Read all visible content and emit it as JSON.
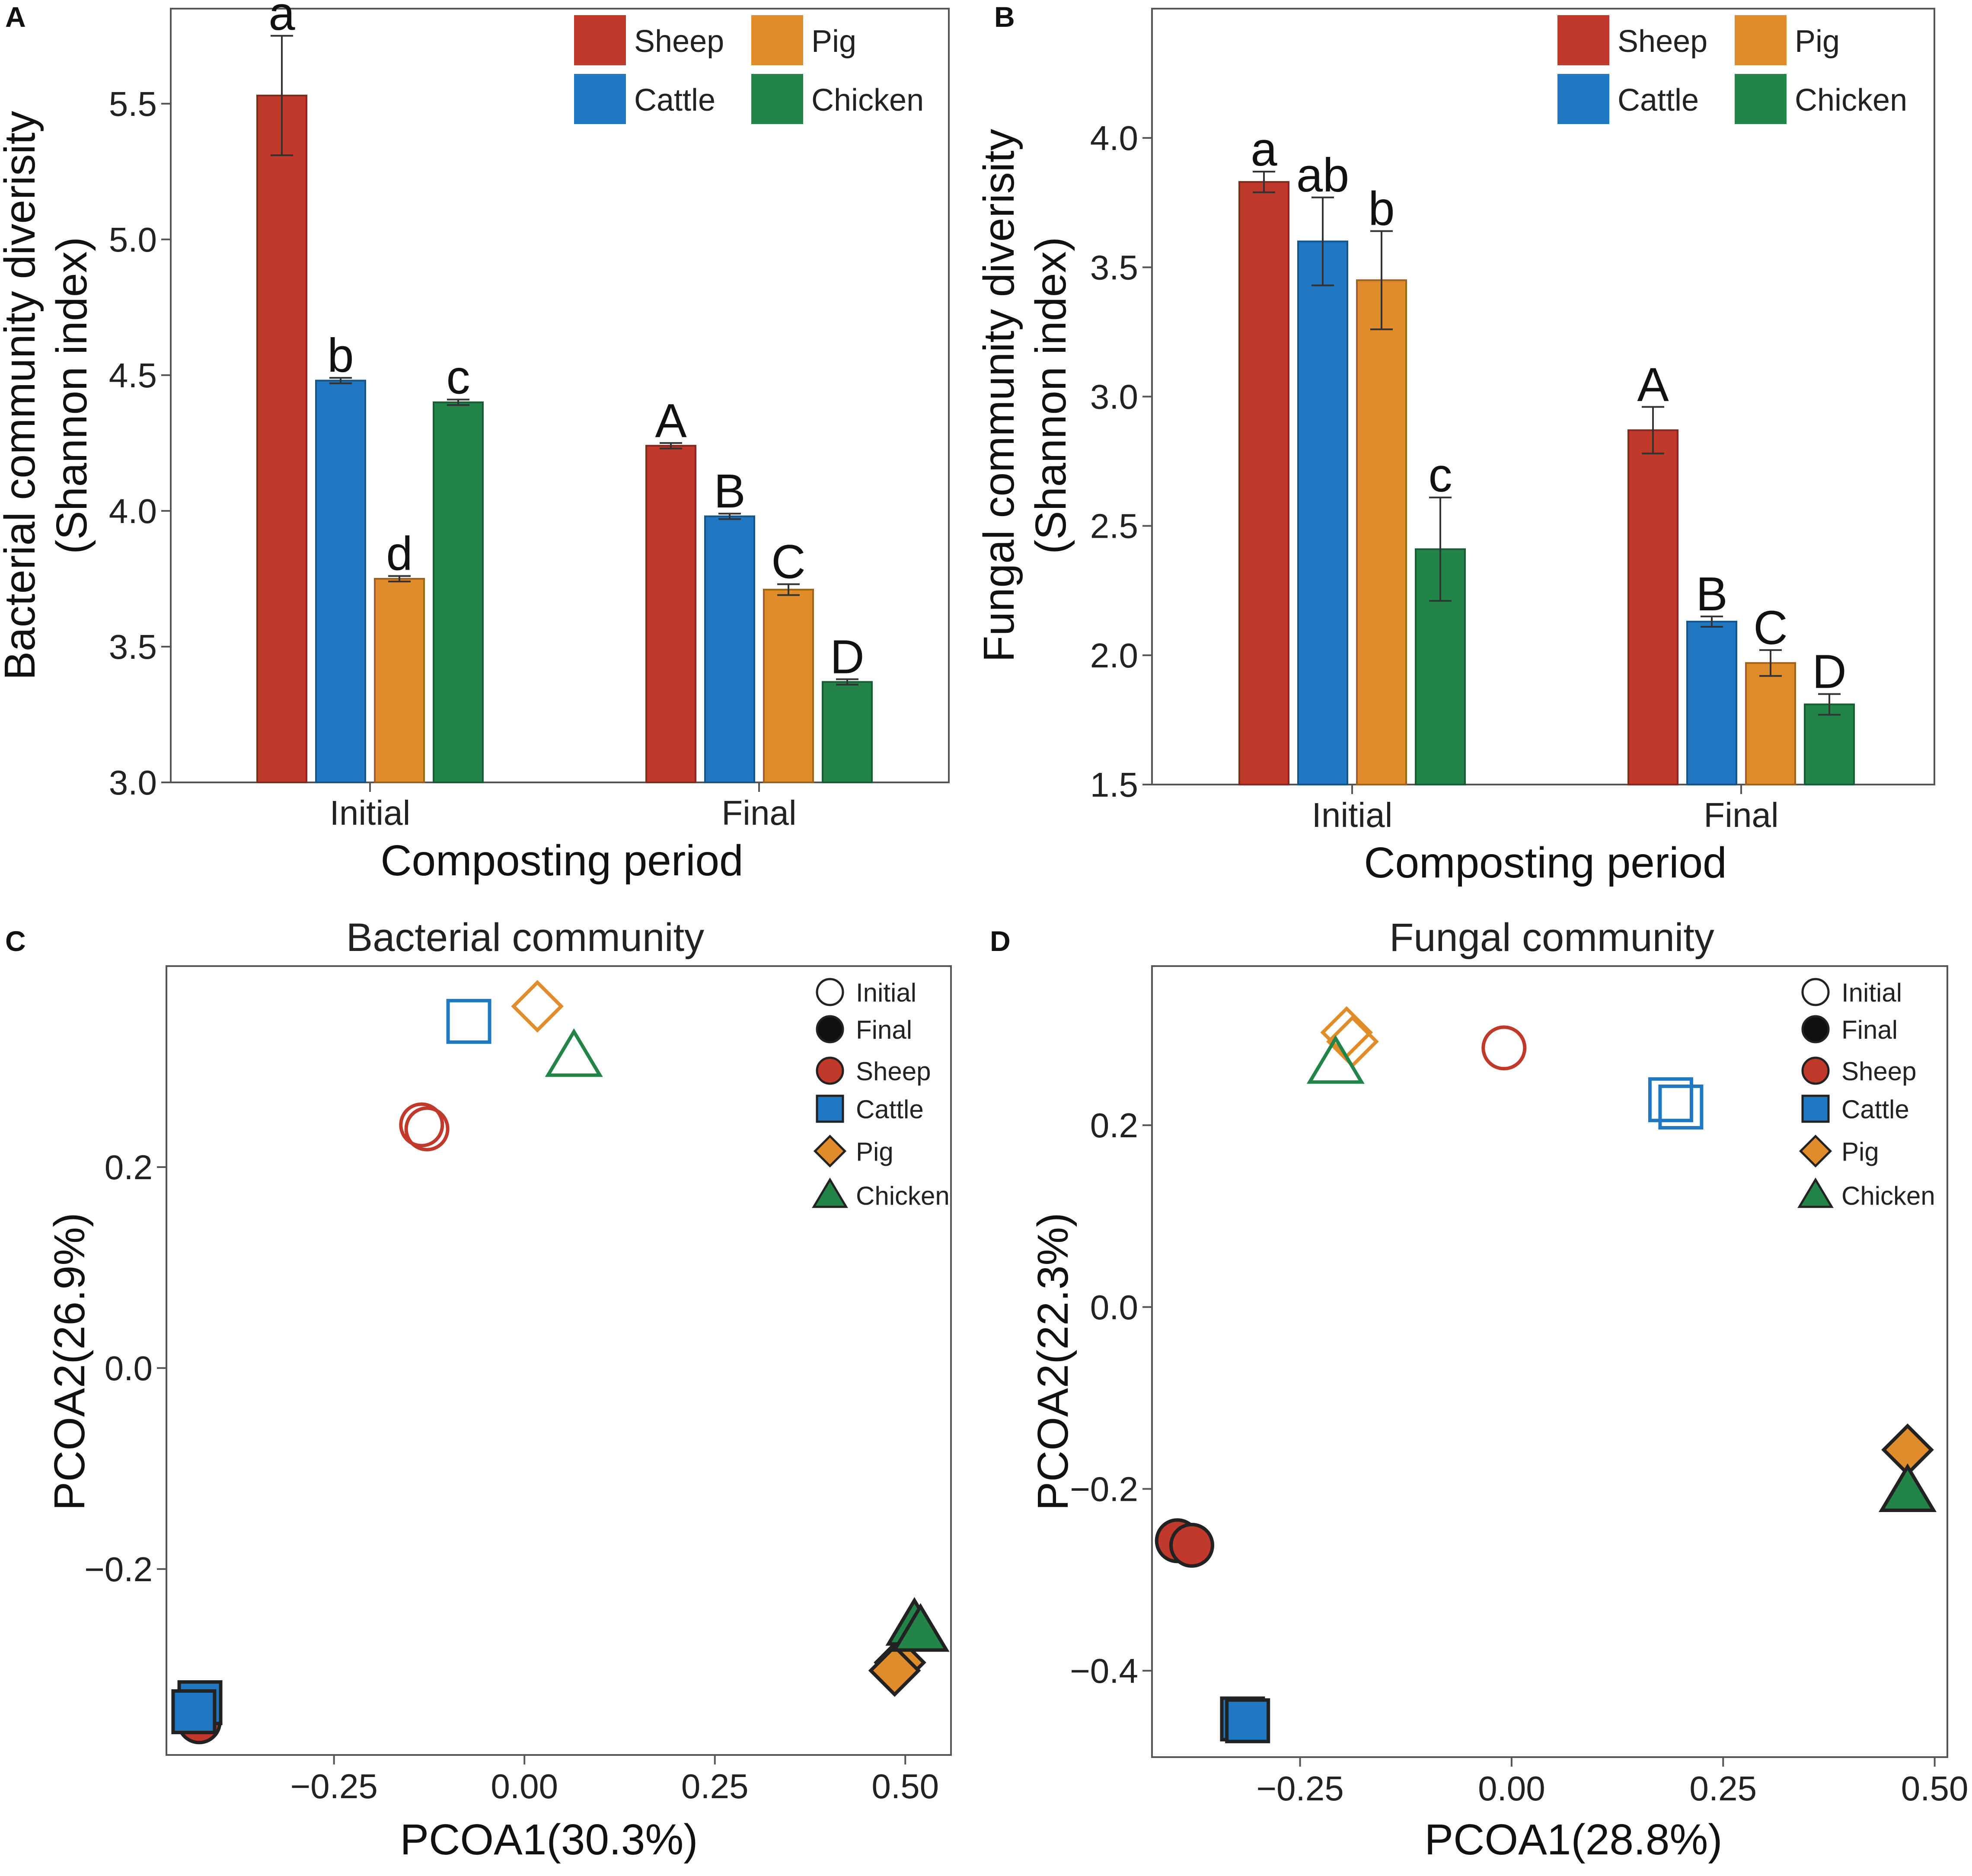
{
  "panels": {
    "A": "A",
    "B": "B",
    "C": "C",
    "D": "D"
  },
  "colors": {
    "Sheep": "#c0392b",
    "Cattle": "#1f78c1",
    "Pig": "#e08c2a",
    "Chicken": "#23844a"
  },
  "legend_bar": [
    {
      "label": "Sheep",
      "color": "#c0392b"
    },
    {
      "label": "Pig",
      "color": "#e08c2a"
    },
    {
      "label": "Cattle",
      "color": "#1f78c1"
    },
    {
      "label": "Chicken",
      "color": "#23844a"
    }
  ],
  "legend_pcoa": [
    {
      "label": "Initial",
      "shape": "circle-open",
      "color": "#111111"
    },
    {
      "label": "Final",
      "shape": "circle-filled",
      "color": "#111111"
    },
    {
      "label": "Sheep",
      "shape": "circle",
      "color": "#c0392b"
    },
    {
      "label": "Cattle",
      "shape": "square",
      "color": "#1f78c1"
    },
    {
      "label": "Pig",
      "shape": "diamond",
      "color": "#e08c2a"
    },
    {
      "label": "Chicken",
      "shape": "triangle",
      "color": "#23844a"
    }
  ],
  "chart_data": [
    {
      "panel": "A",
      "type": "bar",
      "title": "",
      "xlabel": "Composting period",
      "ylabel": [
        "Bacterial community diverisity",
        "(Shannon index)"
      ],
      "categories": [
        "Initial",
        "Final"
      ],
      "ylim": [
        3.0,
        5.85
      ],
      "yticks": [
        "3.0",
        "3.5",
        "4.0",
        "4.5",
        "5.0",
        "5.5"
      ],
      "series": [
        {
          "name": "Sheep",
          "values": [
            5.53,
            4.24
          ],
          "errors": [
            0.22,
            0.01
          ],
          "letters": [
            "a",
            "A"
          ]
        },
        {
          "name": "Cattle",
          "values": [
            4.48,
            3.98
          ],
          "errors": [
            0.01,
            0.01
          ],
          "letters": [
            "b",
            "B"
          ]
        },
        {
          "name": "Pig",
          "values": [
            3.75,
            3.71
          ],
          "errors": [
            0.01,
            0.02
          ],
          "letters": [
            "d",
            "C"
          ]
        },
        {
          "name": "Chicken",
          "values": [
            4.4,
            3.37
          ],
          "errors": [
            0.01,
            0.01
          ],
          "letters": [
            "c",
            "D"
          ]
        }
      ],
      "legend": "top-right"
    },
    {
      "panel": "B",
      "type": "bar",
      "title": "",
      "xlabel": "Composting period",
      "ylabel": [
        "Fungal community diverisity",
        "(Shannon index)"
      ],
      "categories": [
        "Initial",
        "Final"
      ],
      "ylim": [
        1.5,
        4.5
      ],
      "yticks": [
        "1.5",
        "2.0",
        "2.5",
        "3.0",
        "3.5",
        "4.0"
      ],
      "series": [
        {
          "name": "Sheep",
          "values": [
            3.83,
            2.87
          ],
          "errors": [
            0.04,
            0.09
          ],
          "letters": [
            "a",
            "A"
          ]
        },
        {
          "name": "Cattle",
          "values": [
            3.6,
            2.13
          ],
          "errors": [
            0.17,
            0.02
          ],
          "letters": [
            "ab",
            "B"
          ]
        },
        {
          "name": "Pig",
          "values": [
            3.45,
            1.97
          ],
          "errors": [
            0.19,
            0.05
          ],
          "letters": [
            "b",
            "C"
          ]
        },
        {
          "name": "Chicken",
          "values": [
            2.41,
            1.81
          ],
          "errors": [
            0.2,
            0.04
          ],
          "letters": [
            "c",
            "D"
          ]
        }
      ],
      "legend": "top-right"
    },
    {
      "panel": "C",
      "type": "scatter",
      "title": "Bacterial community",
      "xlabel": "PCOA1(30.3%)",
      "ylabel": "PCOA2(26.9%)",
      "xlim": [
        -0.47,
        0.56
      ],
      "ylim": [
        -0.385,
        0.4
      ],
      "xticks": [
        -0.25,
        0.0,
        0.25,
        0.5
      ],
      "xtick_labels": [
        "−0.25",
        "0.00",
        "0.25",
        "0.50"
      ],
      "yticks": [
        -0.2,
        0.0,
        0.2
      ],
      "ytick_labels": [
        "−0.2",
        "0.0",
        "0.2"
      ],
      "points": [
        {
          "group": "Sheep",
          "period": "Initial",
          "x": -0.135,
          "y": 0.242
        },
        {
          "group": "Sheep",
          "period": "Initial",
          "x": -0.128,
          "y": 0.238
        },
        {
          "group": "Cattle",
          "period": "Initial",
          "x": -0.073,
          "y": 0.345
        },
        {
          "group": "Pig",
          "period": "Initial",
          "x": 0.017,
          "y": 0.36
        },
        {
          "group": "Chicken",
          "period": "Initial",
          "x": 0.065,
          "y": 0.31
        },
        {
          "group": "Sheep",
          "period": "Final",
          "x": -0.427,
          "y": -0.352
        },
        {
          "group": "Cattle",
          "period": "Final",
          "x": -0.426,
          "y": -0.333
        },
        {
          "group": "Cattle",
          "period": "Final",
          "x": -0.434,
          "y": -0.342
        },
        {
          "group": "Pig",
          "period": "Final",
          "x": 0.493,
          "y": -0.293
        },
        {
          "group": "Pig",
          "period": "Final",
          "x": 0.486,
          "y": -0.301
        },
        {
          "group": "Chicken",
          "period": "Final",
          "x": 0.512,
          "y": -0.256
        },
        {
          "group": "Chicken",
          "period": "Final",
          "x": 0.52,
          "y": -0.262
        }
      ],
      "legend": "top-right"
    },
    {
      "panel": "D",
      "type": "scatter",
      "title": "Fungal community",
      "xlabel": "PCOA1(28.8%)",
      "ylabel": "PCOA2(22.3%)",
      "xlim": [
        -0.425,
        0.515
      ],
      "ylim": [
        -0.495,
        0.375
      ],
      "xticks": [
        -0.25,
        0.0,
        0.25,
        0.5
      ],
      "xtick_labels": [
        "−0.25",
        "0.00",
        "0.25",
        "0.50"
      ],
      "yticks": [
        -0.4,
        -0.2,
        0.0,
        0.2
      ],
      "ytick_labels": [
        "−0.4",
        "−0.2",
        "0.0",
        "0.2"
      ],
      "points": [
        {
          "group": "Pig",
          "period": "Initial",
          "x": -0.195,
          "y": 0.302
        },
        {
          "group": "Pig",
          "period": "Initial",
          "x": -0.188,
          "y": 0.292
        },
        {
          "group": "Chicken",
          "period": "Initial",
          "x": -0.208,
          "y": 0.268
        },
        {
          "group": "Sheep",
          "period": "Initial",
          "x": -0.009,
          "y": 0.285
        },
        {
          "group": "Cattle",
          "period": "Initial",
          "x": 0.188,
          "y": 0.228
        },
        {
          "group": "Cattle",
          "period": "Initial",
          "x": 0.2,
          "y": 0.22
        },
        {
          "group": "Sheep",
          "period": "Final",
          "x": -0.395,
          "y": -0.257
        },
        {
          "group": "Sheep",
          "period": "Final",
          "x": -0.378,
          "y": -0.262
        },
        {
          "group": "Cattle",
          "period": "Final",
          "x": -0.318,
          "y": -0.453
        },
        {
          "group": "Cattle",
          "period": "Final",
          "x": -0.312,
          "y": -0.455
        },
        {
          "group": "Pig",
          "period": "Final",
          "x": 0.468,
          "y": -0.157
        },
        {
          "group": "Chicken",
          "period": "Final",
          "x": 0.468,
          "y": -0.203
        }
      ],
      "legend": "top-right"
    }
  ]
}
